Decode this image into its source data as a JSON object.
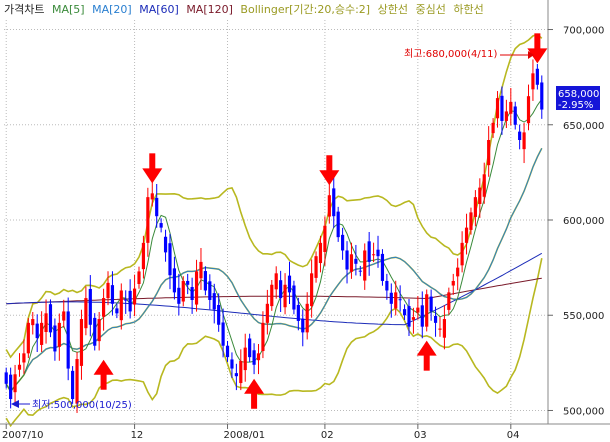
{
  "legend": {
    "title": "가격차트",
    "items": [
      {
        "label": "MA[5]",
        "color": "#3a8a3a"
      },
      {
        "label": "MA[20]",
        "color": "#2a7fd0"
      },
      {
        "label": "MA[60]",
        "color": "#1c2cb8"
      },
      {
        "label": "MA[120]",
        "color": "#7a1a2a"
      },
      {
        "label": "Bollinger[기간:20,승수:2]",
        "color": "#9a9a22"
      },
      {
        "label": "상한선",
        "color": "#9a9a22"
      },
      {
        "label": "중심선",
        "color": "#9a9a22"
      },
      {
        "label": "하한선",
        "color": "#9a9a22"
      }
    ]
  },
  "annotations": {
    "high": "최고:680,000(4/11)",
    "low": "최저:500,000(10/25)",
    "last_price": "658,000",
    "last_change": "-2.95%"
  },
  "colors": {
    "up": "#ff0000",
    "down": "#0000ff",
    "ma5": "#3a8a3a",
    "ma20": "#2a7fd0",
    "ma60": "#1c2cb8",
    "ma120": "#7a1a2a",
    "bollinger": "#b8b820",
    "arrow": "#ff0000",
    "price_box": "#1515d8"
  },
  "chart_data": {
    "type": "candlestick",
    "x_tick_labels": [
      "2007/10",
      "12",
      "2008/01",
      "02",
      "03",
      "04"
    ],
    "y_tick_labels": [
      "700,000",
      "650,000",
      "600,000",
      "550,000",
      "500,000"
    ],
    "ylim": [
      495000,
      705000
    ],
    "grid": true,
    "close": [
      514000,
      506000,
      519000,
      524000,
      530000,
      546000,
      548000,
      538000,
      546000,
      551000,
      541000,
      531000,
      546000,
      552000,
      522000,
      506000,
      527000,
      548000,
      559000,
      545000,
      534000,
      548000,
      559000,
      567000,
      556000,
      551000,
      563000,
      558000,
      552000,
      564000,
      573000,
      588000,
      612000,
      614000,
      602000,
      596000,
      583000,
      571000,
      562000,
      556000,
      568000,
      566000,
      558000,
      573000,
      578000,
      563000,
      558000,
      553000,
      545000,
      534000,
      528000,
      522000,
      518000,
      526000,
      533000,
      528000,
      524000,
      530000,
      546000,
      556000,
      566000,
      572000,
      559000,
      566000,
      562000,
      553000,
      547000,
      541000,
      556000,
      572000,
      581000,
      588000,
      597000,
      613000,
      602000,
      591000,
      584000,
      574000,
      582000,
      577000,
      573000,
      584000,
      578000,
      582000,
      581000,
      568000,
      563000,
      556000,
      562000,
      558000,
      550000,
      544000,
      549000,
      554000,
      544000,
      561000,
      552000,
      546000,
      543000,
      548000,
      562000,
      568000,
      575000,
      588000,
      596000,
      604000,
      612000,
      617000,
      624000,
      642000,
      651000,
      664000,
      652000,
      657000,
      662000,
      650000,
      642000,
      646000,
      665000,
      677000,
      671000,
      658000
    ]
  }
}
